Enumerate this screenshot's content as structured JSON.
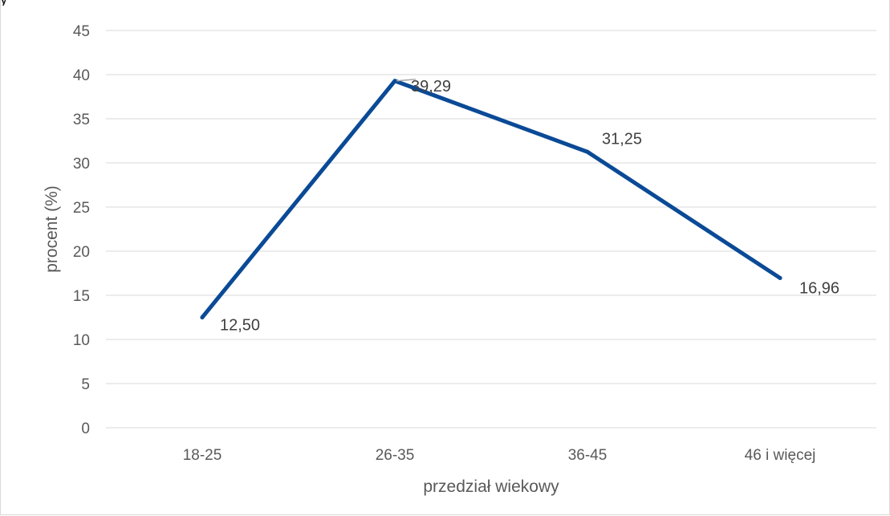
{
  "header": {
    "clipped_text": "y"
  },
  "chart_data": {
    "type": "line",
    "title": "",
    "xlabel": "przedział wiekowy",
    "ylabel": "procent (%)",
    "categories": [
      "18-25",
      "26-35",
      "36-45",
      "46 i więcej"
    ],
    "series": [
      {
        "values": [
          12.5,
          39.29,
          31.25,
          16.96
        ],
        "labels": [
          "12,50",
          "39,29",
          "31,25",
          "16,96"
        ],
        "color": "#0a4a96"
      }
    ],
    "ylim": [
      0,
      45
    ],
    "y_ticks": [
      {
        "value": 0,
        "label": "0"
      },
      {
        "value": 5,
        "label": "5"
      },
      {
        "value": 10,
        "label": "10"
      },
      {
        "value": 15,
        "label": "15"
      },
      {
        "value": 20,
        "label": "20"
      },
      {
        "value": 25,
        "label": "25"
      },
      {
        "value": 30,
        "label": "30"
      },
      {
        "value": 35,
        "label": "35"
      },
      {
        "value": 40,
        "label": "40"
      },
      {
        "value": 45,
        "label": "45"
      }
    ],
    "grid": true,
    "legend": "none",
    "gridline_color": "#d9d9d9"
  }
}
